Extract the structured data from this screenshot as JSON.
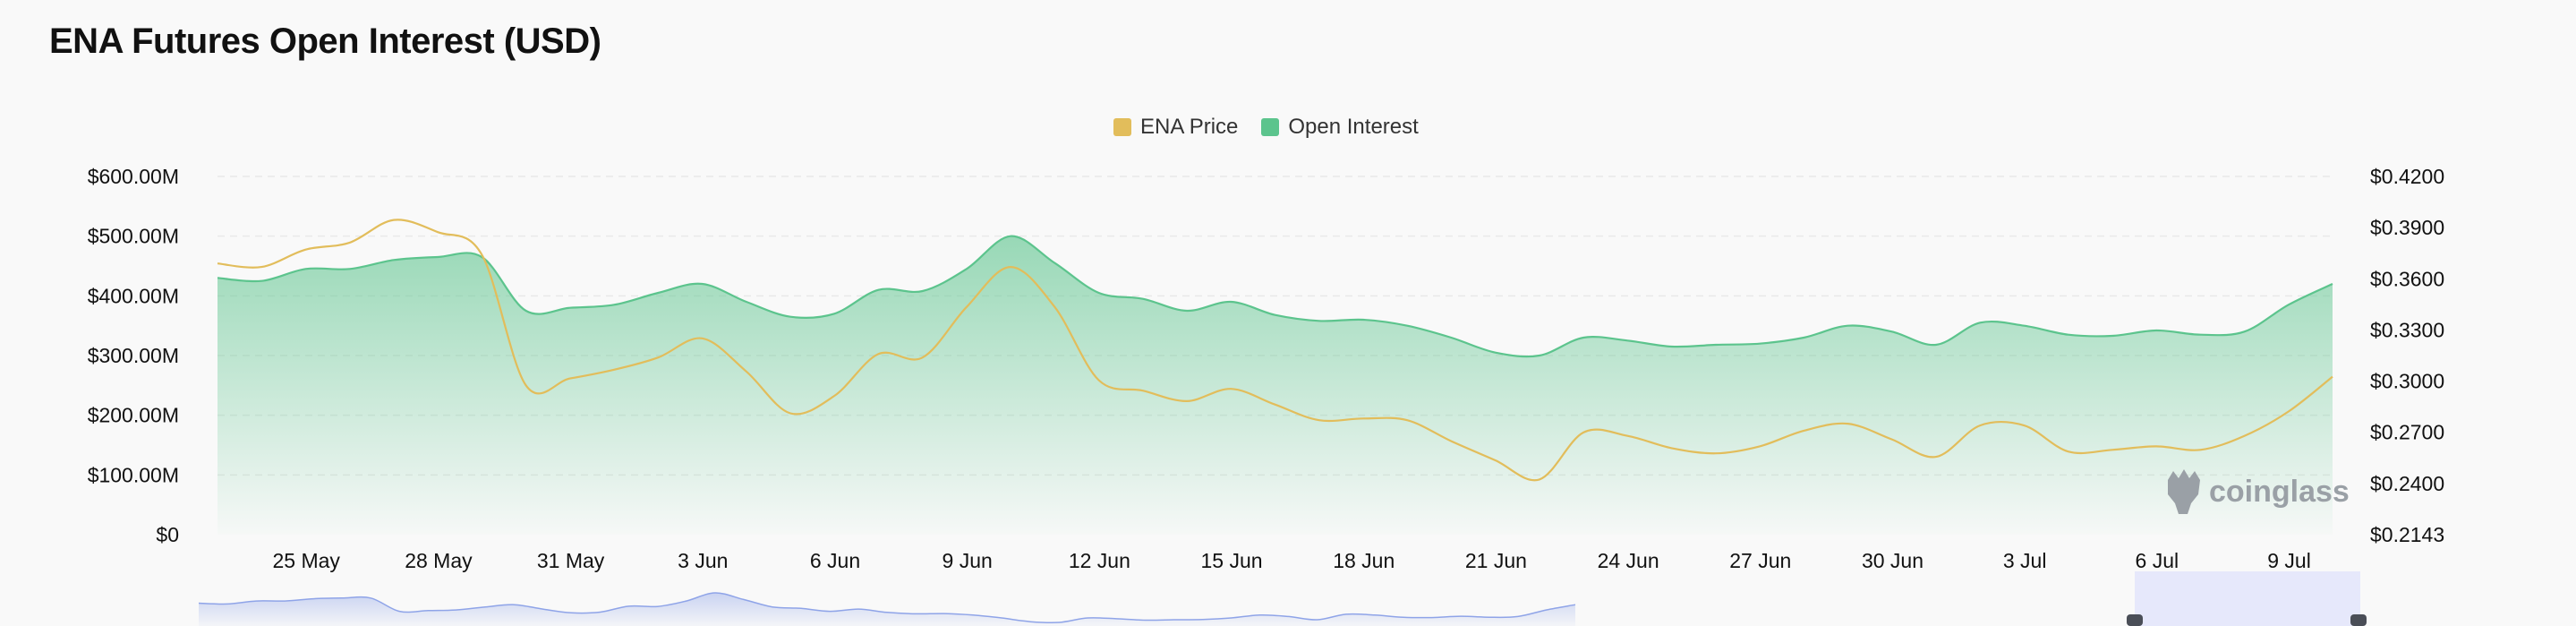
{
  "title": "ENA Futures Open Interest (USD)",
  "legend": [
    {
      "label": "ENA Price",
      "color": "#e2bd5b"
    },
    {
      "label": "Open Interest",
      "color": "#5cc48d"
    }
  ],
  "watermark": "coinglass",
  "chart_data": {
    "type": "area",
    "title": "ENA Futures Open Interest (USD)",
    "x_ticks": [
      "25 May",
      "28 May",
      "31 May",
      "3 Jun",
      "6 Jun",
      "9 Jun",
      "12 Jun",
      "15 Jun",
      "18 Jun",
      "21 Jun",
      "24 Jun",
      "27 Jun",
      "30 Jun",
      "3 Jul",
      "6 Jul",
      "9 Jul"
    ],
    "y_left_ticks": [
      "$0",
      "$100.00M",
      "$200.00M",
      "$300.00M",
      "$400.00M",
      "$500.00M",
      "$600.00M"
    ],
    "y_right_ticks": [
      "$0.2143",
      "$0.2400",
      "$0.2700",
      "$0.3000",
      "$0.3300",
      "$0.3600",
      "$0.3900",
      "$0.4200"
    ],
    "y_left_range": [
      0,
      600000000
    ],
    "y_right_range": [
      0.2143,
      0.42
    ],
    "x_range": [
      "2024-05-24",
      "2024-07-11"
    ],
    "grid": true,
    "legend_position": "top-center",
    "series": [
      {
        "name": "Open Interest",
        "axis": "left",
        "color": "#5cc48d",
        "x": [
          "2024-05-24",
          "2024-05-25",
          "2024-05-26",
          "2024-05-27",
          "2024-05-28",
          "2024-05-29",
          "2024-05-30",
          "2024-05-31",
          "2024-06-01",
          "2024-06-02",
          "2024-06-03",
          "2024-06-04",
          "2024-06-05",
          "2024-06-06",
          "2024-06-07",
          "2024-06-08",
          "2024-06-09",
          "2024-06-10",
          "2024-06-11",
          "2024-06-12",
          "2024-06-13",
          "2024-06-14",
          "2024-06-15",
          "2024-06-16",
          "2024-06-17",
          "2024-06-18",
          "2024-06-19",
          "2024-06-20",
          "2024-06-21",
          "2024-06-22",
          "2024-06-23",
          "2024-06-24",
          "2024-06-25",
          "2024-06-26",
          "2024-06-27",
          "2024-06-28",
          "2024-06-29",
          "2024-06-30",
          "2024-07-01",
          "2024-07-02",
          "2024-07-03",
          "2024-07-04",
          "2024-07-05",
          "2024-07-06",
          "2024-07-07",
          "2024-07-08",
          "2024-07-09",
          "2024-07-10",
          "2024-07-11"
        ],
        "values": [
          430,
          425,
          445,
          445,
          460,
          465,
          465,
          375,
          380,
          385,
          405,
          420,
          390,
          365,
          370,
          410,
          408,
          445,
          500,
          455,
          405,
          395,
          375,
          390,
          368,
          358,
          360,
          350,
          330,
          305,
          300,
          330,
          325,
          315,
          318,
          320,
          330,
          350,
          340,
          318,
          355,
          350,
          335,
          333,
          342,
          335,
          340,
          385,
          420
        ]
      },
      {
        "name": "ENA Price",
        "axis": "right",
        "color": "#e2bd5b",
        "x": [
          "2024-05-24",
          "2024-05-25",
          "2024-05-26",
          "2024-05-27",
          "2024-05-28",
          "2024-05-29",
          "2024-05-30",
          "2024-05-31",
          "2024-06-01",
          "2024-06-02",
          "2024-06-03",
          "2024-06-04",
          "2024-06-05",
          "2024-06-06",
          "2024-06-07",
          "2024-06-08",
          "2024-06-09",
          "2024-06-10",
          "2024-06-11",
          "2024-06-12",
          "2024-06-13",
          "2024-06-14",
          "2024-06-15",
          "2024-06-16",
          "2024-06-17",
          "2024-06-18",
          "2024-06-19",
          "2024-06-20",
          "2024-06-21",
          "2024-06-22",
          "2024-06-23",
          "2024-06-24",
          "2024-06-25",
          "2024-06-26",
          "2024-06-27",
          "2024-06-28",
          "2024-06-29",
          "2024-06-30",
          "2024-07-01",
          "2024-07-02",
          "2024-07-03",
          "2024-07-04",
          "2024-07-05",
          "2024-07-06",
          "2024-07-07",
          "2024-07-08",
          "2024-07-09",
          "2024-07-10",
          "2024-07-11"
        ],
        "values": [
          0.37,
          0.368,
          0.378,
          0.382,
          0.395,
          0.388,
          0.375,
          0.3,
          0.304,
          0.309,
          0.316,
          0.327,
          0.308,
          0.284,
          0.294,
          0.318,
          0.316,
          0.345,
          0.368,
          0.345,
          0.303,
          0.297,
          0.291,
          0.298,
          0.289,
          0.28,
          0.281,
          0.28,
          0.268,
          0.257,
          0.246,
          0.273,
          0.271,
          0.264,
          0.261,
          0.265,
          0.274,
          0.278,
          0.269,
          0.259,
          0.277,
          0.277,
          0.262,
          0.263,
          0.265,
          0.263,
          0.271,
          0.285,
          0.305
        ]
      }
    ]
  }
}
